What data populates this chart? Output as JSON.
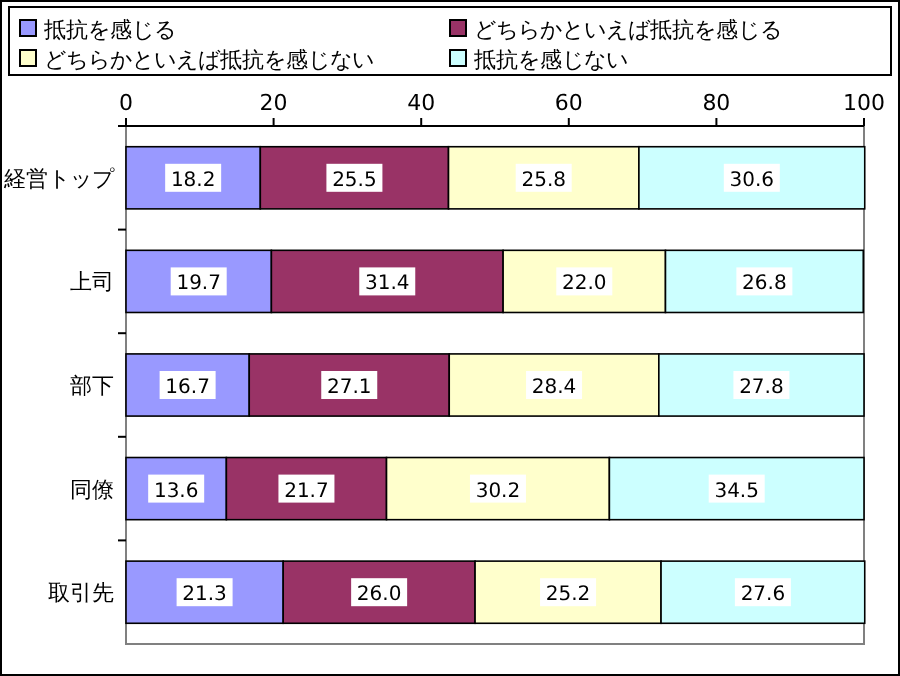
{
  "chart_data": {
    "type": "bar",
    "orientation": "horizontal",
    "stacked": true,
    "categories": [
      "経営トップ",
      "上司",
      "部下",
      "同僚",
      "取引先"
    ],
    "series": [
      {
        "name": "抵抗を感じる",
        "color": "#9999ff",
        "values": [
          18.2,
          19.7,
          16.7,
          13.6,
          21.3
        ],
        "value_labels": [
          "18.2",
          "19.7",
          "16.7",
          "13.6",
          "21.3"
        ]
      },
      {
        "name": "どちらかといえば抵抗を感じる",
        "color": "#993366",
        "values": [
          25.5,
          31.4,
          27.1,
          21.7,
          26.0
        ],
        "value_labels": [
          "25.5",
          "31.4",
          "27.1",
          "21.7",
          "26.0"
        ]
      },
      {
        "name": "どちらかといえば抵抗を感じない",
        "color": "#ffffcc",
        "values": [
          25.8,
          22.0,
          28.4,
          30.2,
          25.2
        ],
        "value_labels": [
          "25.8",
          "22.0",
          "28.4",
          "30.2",
          "25.2"
        ]
      },
      {
        "name": "抵抗を感じない",
        "color": "#ccffff",
        "values": [
          30.6,
          26.8,
          27.8,
          34.5,
          27.6
        ],
        "value_labels": [
          "30.6",
          "26.8",
          "27.8",
          "34.5",
          "27.6"
        ]
      }
    ],
    "xlim": [
      0,
      100
    ],
    "xticks": [
      0,
      20,
      40,
      60,
      80,
      100
    ],
    "legend": "top",
    "grid": false
  }
}
